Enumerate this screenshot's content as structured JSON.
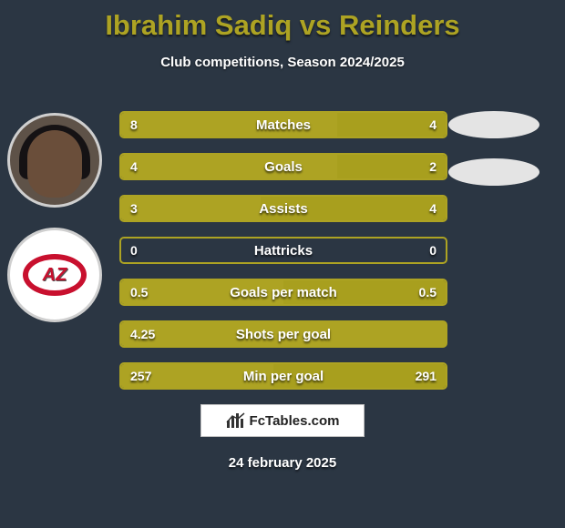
{
  "title": "Ibrahim Sadiq vs Reinders",
  "subtitle": "Club competitions, Season 2024/2025",
  "date": "24 february 2025",
  "footer_brand": "FcTables.com",
  "colors": {
    "background": "#2b3643",
    "player1": "#ada323",
    "player2": "#a89f1e",
    "border": "#ada323",
    "track_border_full_left": "#ada323",
    "ellipse": "#e4e4e4"
  },
  "bars": {
    "inner_width": 356,
    "rows": [
      {
        "label": "Matches",
        "left_val": "8",
        "right_val": "4",
        "left_frac": 0.667,
        "right_frac": 0.333,
        "left_color": "#ada323",
        "right_color": "#a89f1e",
        "border_color": "#ada323"
      },
      {
        "label": "Goals",
        "left_val": "4",
        "right_val": "2",
        "left_frac": 0.667,
        "right_frac": 0.333,
        "left_color": "#ada323",
        "right_color": "#a89f1e",
        "border_color": "#ada323"
      },
      {
        "label": "Assists",
        "left_val": "3",
        "right_val": "4",
        "left_frac": 0.429,
        "right_frac": 0.571,
        "left_color": "#ada323",
        "right_color": "#a89f1e",
        "border_color": "#ada323"
      },
      {
        "label": "Hattricks",
        "left_val": "0",
        "right_val": "0",
        "left_frac": 0.0,
        "right_frac": 0.0,
        "left_color": "#ada323",
        "right_color": "#a89f1e",
        "border_color": "#ada323"
      },
      {
        "label": "Goals per match",
        "left_val": "0.5",
        "right_val": "0.5",
        "left_frac": 0.5,
        "right_frac": 0.5,
        "left_color": "#ada323",
        "right_color": "#a89f1e",
        "border_color": "#ada323"
      },
      {
        "label": "Shots per goal",
        "left_val": "4.25",
        "right_val": "",
        "left_frac": 1.0,
        "right_frac": 0.0,
        "left_color": "#ada323",
        "right_color": "#a89f1e",
        "border_color": "#ada323"
      },
      {
        "label": "Min per goal",
        "left_val": "257",
        "right_val": "291",
        "left_frac": 0.469,
        "right_frac": 0.531,
        "left_color": "#ada323",
        "right_color": "#a89f1e",
        "border_color": "#ada323"
      }
    ]
  }
}
